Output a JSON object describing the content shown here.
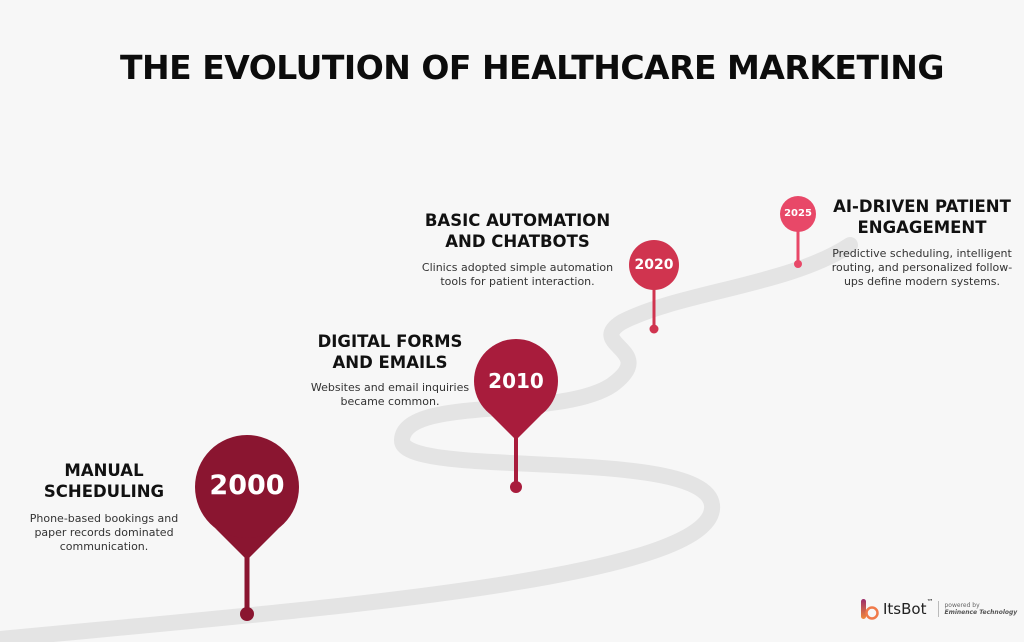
{
  "title": "THE EVOLUTION OF HEALTHCARE MARKETING",
  "milestones": [
    {
      "year": "2000",
      "heading_l1": "MANUAL",
      "heading_l2": "SCHEDULING",
      "desc_l1": "Phone-based bookings and",
      "desc_l2": "paper records dominated",
      "desc_l3": "communication.",
      "color": "#8a1530"
    },
    {
      "year": "2010",
      "heading_l1": "DIGITAL FORMS",
      "heading_l2": "AND EMAILS",
      "desc_l1": "Websites and email inquiries",
      "desc_l2": "became common.",
      "color": "#a81c3c"
    },
    {
      "year": "2020",
      "heading_l1": "BASIC AUTOMATION",
      "heading_l2": "AND CHATBOTS",
      "desc_l1": "Clinics adopted simple automation",
      "desc_l2": "tools for patient interaction.",
      "color": "#d0344f"
    },
    {
      "year": "2025",
      "heading_l1": "AI-DRIVEN PATIENT",
      "heading_l2": "ENGAGEMENT",
      "desc_l1": "Predictive scheduling, intelligent",
      "desc_l2": "routing, and personalized follow-",
      "desc_l3": "ups define modern systems.",
      "color": "#e84868"
    }
  ],
  "logo": {
    "brand": "ItsBot",
    "tm": "™",
    "powered_by": "powered by",
    "company": "Eminence Technology"
  }
}
